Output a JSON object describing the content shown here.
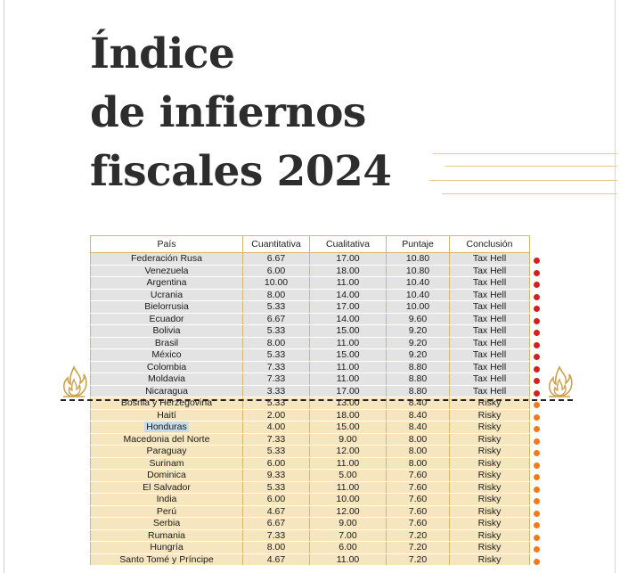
{
  "title": {
    "line1": "Índice",
    "line2": "de infiernos",
    "line3": "fiscales 2024"
  },
  "table": {
    "headers": [
      "País",
      "Cuantitativa",
      "Cualitativa",
      "Puntaje",
      "Conclusión"
    ],
    "rows": [
      {
        "pais": "Federación Rusa",
        "cuant": "6.67",
        "cual": "17.00",
        "puntaje": "10.80",
        "conclusion": "Tax Hell",
        "group": "hell"
      },
      {
        "pais": "Venezuela",
        "cuant": "6.00",
        "cual": "18.00",
        "puntaje": "10.80",
        "conclusion": "Tax Hell",
        "group": "hell"
      },
      {
        "pais": "Argentina",
        "cuant": "10.00",
        "cual": "11.00",
        "puntaje": "10.40",
        "conclusion": "Tax Hell",
        "group": "hell"
      },
      {
        "pais": "Ucrania",
        "cuant": "8.00",
        "cual": "14.00",
        "puntaje": "10.40",
        "conclusion": "Tax Hell",
        "group": "hell"
      },
      {
        "pais": "Bielorrusia",
        "cuant": "5.33",
        "cual": "17.00",
        "puntaje": "10.00",
        "conclusion": "Tax Hell",
        "group": "hell"
      },
      {
        "pais": "Ecuador",
        "cuant": "6.67",
        "cual": "14.00",
        "puntaje": "9.60",
        "conclusion": "Tax Hell",
        "group": "hell"
      },
      {
        "pais": "Bolivia",
        "cuant": "5.33",
        "cual": "15.00",
        "puntaje": "9.20",
        "conclusion": "Tax Hell",
        "group": "hell"
      },
      {
        "pais": "Brasil",
        "cuant": "8.00",
        "cual": "11.00",
        "puntaje": "9.20",
        "conclusion": "Tax Hell",
        "group": "hell"
      },
      {
        "pais": "México",
        "cuant": "5.33",
        "cual": "15.00",
        "puntaje": "9.20",
        "conclusion": "Tax Hell",
        "group": "hell"
      },
      {
        "pais": "Colombia",
        "cuant": "7.33",
        "cual": "11.00",
        "puntaje": "8.80",
        "conclusion": "Tax Hell",
        "group": "hell"
      },
      {
        "pais": "Moldavia",
        "cuant": "7.33",
        "cual": "11.00",
        "puntaje": "8.80",
        "conclusion": "Tax Hell",
        "group": "hell"
      },
      {
        "pais": "Nicaragua",
        "cuant": "3.33",
        "cual": "17.00",
        "puntaje": "8.80",
        "conclusion": "Tax Hell",
        "group": "hell"
      },
      {
        "pais": "Bosnia y Herzegovina",
        "cuant": "5.33",
        "cual": "13.00",
        "puntaje": "8.40",
        "conclusion": "Risky",
        "group": "risky"
      },
      {
        "pais": "Haití",
        "cuant": "2.00",
        "cual": "18.00",
        "puntaje": "8.40",
        "conclusion": "Risky",
        "group": "risky"
      },
      {
        "pais": "Honduras",
        "cuant": "4.00",
        "cual": "15.00",
        "puntaje": "8.40",
        "conclusion": "Risky",
        "group": "risky",
        "highlight": true
      },
      {
        "pais": "Macedonia del Norte",
        "cuant": "7.33",
        "cual": "9.00",
        "puntaje": "8.00",
        "conclusion": "Risky",
        "group": "risky"
      },
      {
        "pais": "Paraguay",
        "cuant": "5.33",
        "cual": "12.00",
        "puntaje": "8.00",
        "conclusion": "Risky",
        "group": "risky"
      },
      {
        "pais": "Surinam",
        "cuant": "6.00",
        "cual": "11.00",
        "puntaje": "8.00",
        "conclusion": "Risky",
        "group": "risky"
      },
      {
        "pais": "Dominica",
        "cuant": "9.33",
        "cual": "5.00",
        "puntaje": "7.60",
        "conclusion": "Risky",
        "group": "risky"
      },
      {
        "pais": "El Salvador",
        "cuant": "5.33",
        "cual": "11.00",
        "puntaje": "7.60",
        "conclusion": "Risky",
        "group": "risky"
      },
      {
        "pais": "India",
        "cuant": "6.00",
        "cual": "10.00",
        "puntaje": "7.60",
        "conclusion": "Risky",
        "group": "risky"
      },
      {
        "pais": "Perú",
        "cuant": "4.67",
        "cual": "12.00",
        "puntaje": "7.60",
        "conclusion": "Risky",
        "group": "risky"
      },
      {
        "pais": "Serbia",
        "cuant": "6.67",
        "cual": "9.00",
        "puntaje": "7.60",
        "conclusion": "Risky",
        "group": "risky"
      },
      {
        "pais": "Rumania",
        "cuant": "7.33",
        "cual": "7.00",
        "puntaje": "7.20",
        "conclusion": "Risky",
        "group": "risky"
      },
      {
        "pais": "Hungría",
        "cuant": "8.00",
        "cual": "6.00",
        "puntaje": "7.20",
        "conclusion": "Risky",
        "group": "risky"
      },
      {
        "pais": "Santo Tomé y Príncipe",
        "cuant": "4.67",
        "cual": "11.00",
        "puntaje": "7.20",
        "conclusion": "Risky",
        "group": "risky"
      }
    ]
  },
  "colors": {
    "tax_hell_dot": "#d42020",
    "risky_dot": "#f07a1c",
    "tax_hell_row": "#e3e3e3",
    "risky_row": "#f6e6bf",
    "border_gold": "#d6b76a"
  },
  "icons": {
    "left": "flame-icon",
    "right": "flame-icon"
  }
}
